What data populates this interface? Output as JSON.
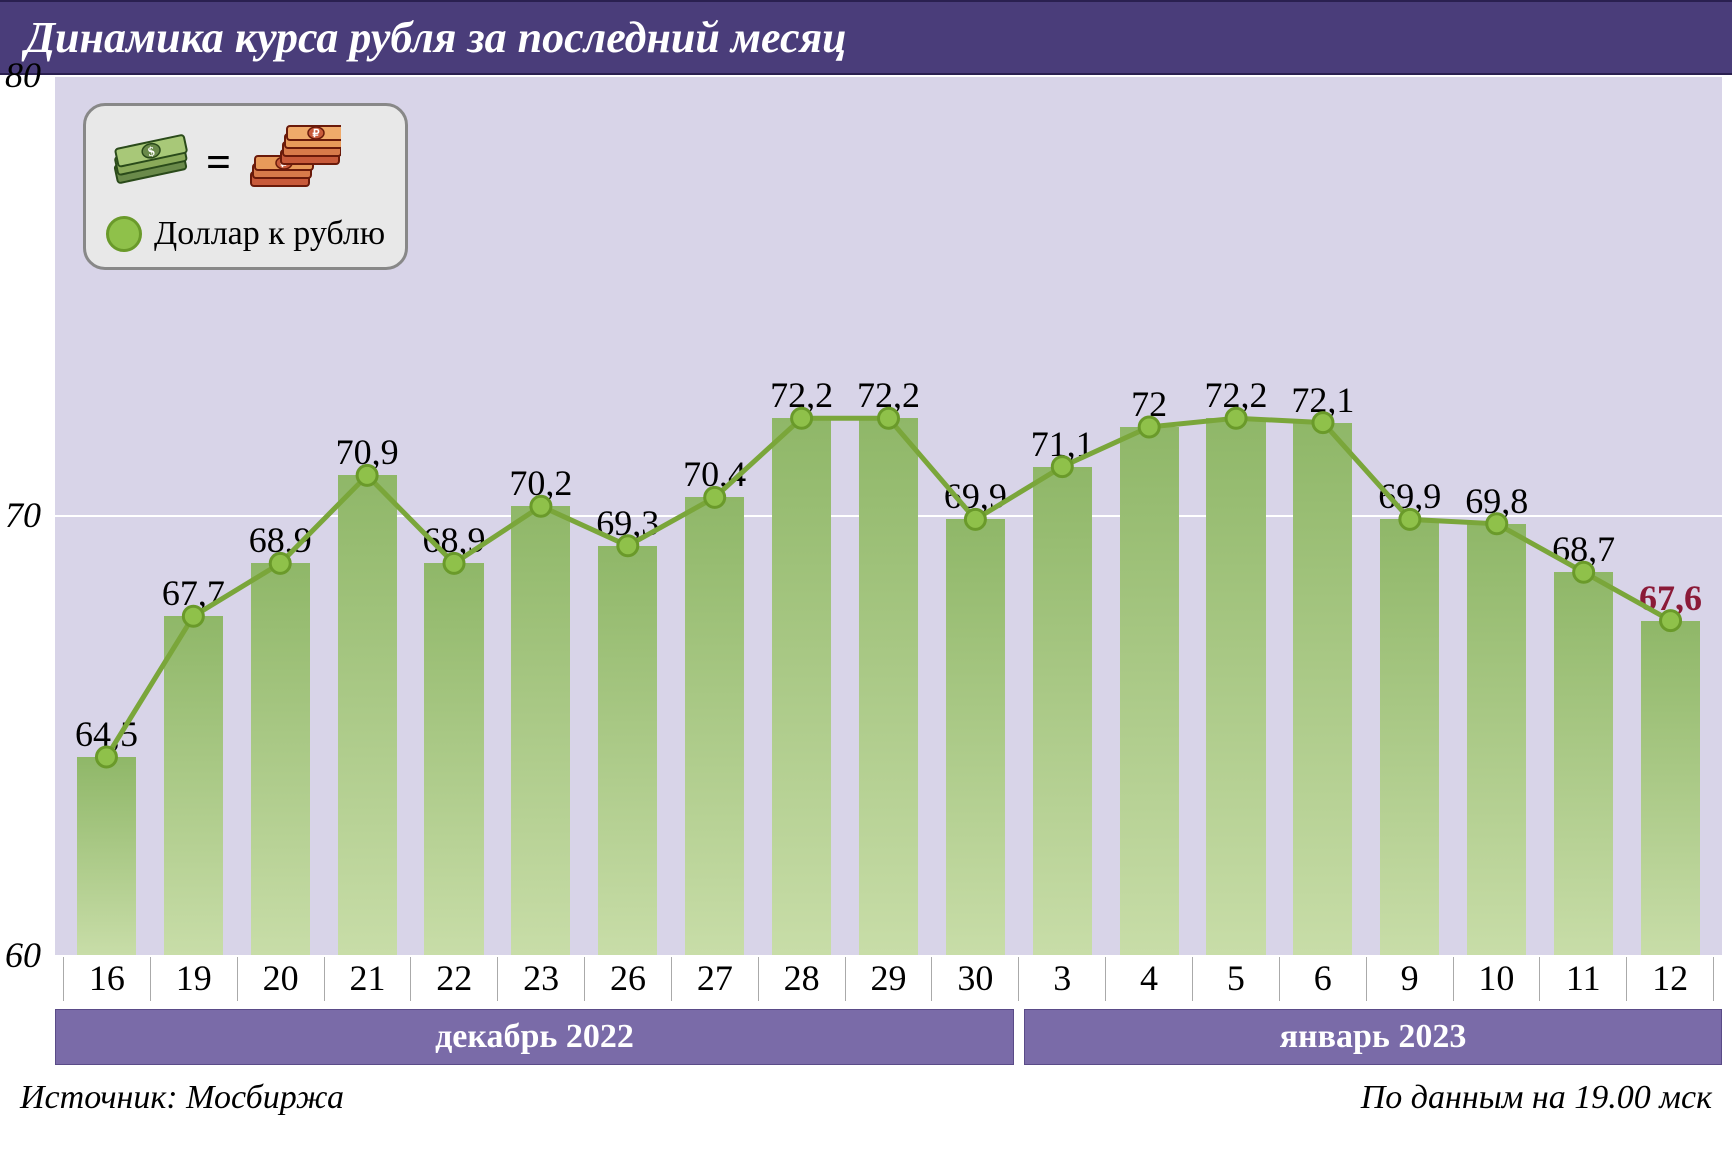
{
  "title": "Динамика курса рубля за последний месяц",
  "chart": {
    "type": "bar-line",
    "ylim": [
      60,
      80
    ],
    "yticks": [
      60,
      70,
      80
    ],
    "background_color": "#d8d4e8",
    "grid_color": "#ffffff",
    "bar_gradient_top": "#8fb768",
    "bar_gradient_bottom": "#c8dda8",
    "line_color": "#7aa63a",
    "marker_color": "#8fc14a",
    "marker_border": "#6a9a2a",
    "value_fontsize": 36,
    "highlight_color": "#8b1a38",
    "bar_width_ratio": 0.68,
    "data": [
      {
        "day": "16",
        "value": 64.5,
        "label": "64,5",
        "month_group": 0
      },
      {
        "day": "19",
        "value": 67.7,
        "label": "67,7",
        "month_group": 0
      },
      {
        "day": "20",
        "value": 68.9,
        "label": "68,9",
        "month_group": 0
      },
      {
        "day": "21",
        "value": 70.9,
        "label": "70,9",
        "month_group": 0
      },
      {
        "day": "22",
        "value": 68.9,
        "label": "68,9",
        "month_group": 0
      },
      {
        "day": "23",
        "value": 70.2,
        "label": "70,2",
        "month_group": 0
      },
      {
        "day": "26",
        "value": 69.3,
        "label": "69,3",
        "month_group": 0
      },
      {
        "day": "27",
        "value": 70.4,
        "label": "70,4",
        "month_group": 0
      },
      {
        "day": "28",
        "value": 72.2,
        "label": "72,2",
        "month_group": 0
      },
      {
        "day": "29",
        "value": 72.2,
        "label": "72,2",
        "month_group": 0
      },
      {
        "day": "30",
        "value": 69.9,
        "label": "69,9",
        "month_group": 0
      },
      {
        "day": "3",
        "value": 71.1,
        "label": "71,1",
        "month_group": 1
      },
      {
        "day": "4",
        "value": 72.0,
        "label": "72",
        "month_group": 1
      },
      {
        "day": "5",
        "value": 72.2,
        "label": "72,2",
        "month_group": 1
      },
      {
        "day": "6",
        "value": 72.1,
        "label": "72,1",
        "month_group": 1
      },
      {
        "day": "9",
        "value": 69.9,
        "label": "69,9",
        "month_group": 1
      },
      {
        "day": "10",
        "value": 69.8,
        "label": "69,8",
        "month_group": 1
      },
      {
        "day": "11",
        "value": 68.7,
        "label": "68,7",
        "month_group": 1
      },
      {
        "day": "12",
        "value": 67.6,
        "label": "67,6",
        "month_group": 1,
        "highlight": true
      }
    ],
    "month_groups": [
      {
        "label": "декабрь 2022",
        "count": 11
      },
      {
        "label": "январь 2023",
        "count": 8
      }
    ]
  },
  "legend": {
    "series_label": "Доллар к рублю",
    "dot_color": "#8fc14a",
    "dot_border": "#6a9a2a",
    "equals": "="
  },
  "footer": {
    "source": "Источник: Мосбиржа",
    "timestamp": "По данным на 19.00 мск"
  },
  "colors": {
    "title_bg": "#4a3d7a",
    "title_text": "#ffffff",
    "month_bg": "#7a6ba8",
    "month_text": "#ffffff"
  }
}
